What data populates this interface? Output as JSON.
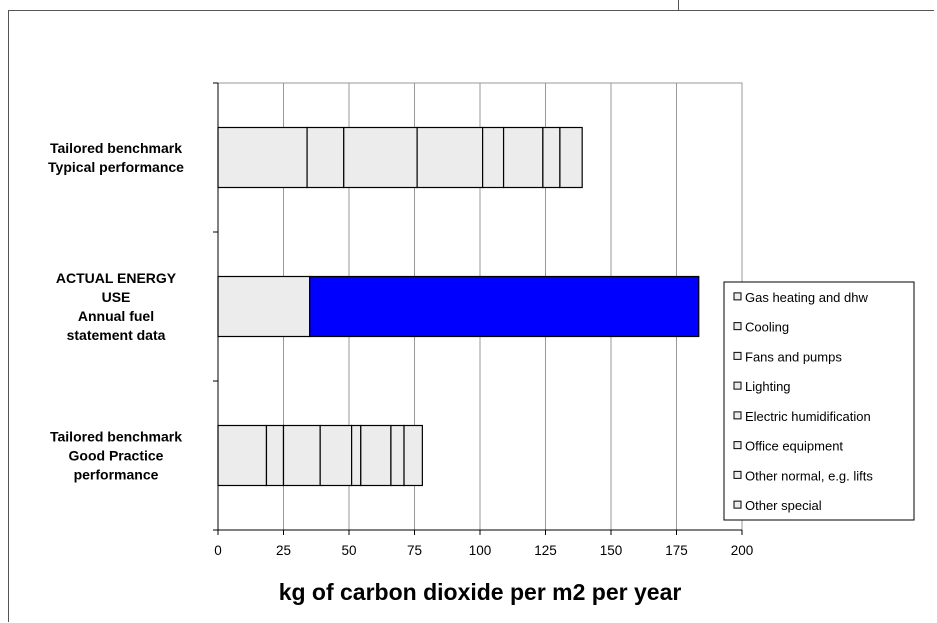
{
  "chart_data": {
    "type": "bar",
    "orientation": "horizontal",
    "stacked": true,
    "xlabel": "kg of carbon dioxide per m2 per year",
    "xlim": [
      0,
      200
    ],
    "xticks": [
      0,
      25,
      50,
      75,
      100,
      125,
      150,
      175,
      200
    ],
    "grid": true,
    "legend_position": "right",
    "categories": [
      {
        "lines": [
          "Tailored benchmark",
          "Typical performance"
        ]
      },
      {
        "lines": [
          "ACTUAL ENERGY",
          "USE",
          "Annual fuel",
          "statement data"
        ]
      },
      {
        "lines": [
          "Tailored benchmark",
          "Good Practice",
          "performance"
        ]
      }
    ],
    "series": [
      {
        "name": "Gas heating and dhw",
        "values": [
          34,
          35,
          18.5
        ]
      },
      {
        "name": "Cooling",
        "values": [
          14,
          0,
          6.5
        ]
      },
      {
        "name": "Fans and pumps",
        "values": [
          28,
          0,
          14
        ]
      },
      {
        "name": "Lighting",
        "values": [
          25,
          0,
          12
        ]
      },
      {
        "name": "Electric humidification",
        "values": [
          8,
          0,
          3.5
        ]
      },
      {
        "name": "Office equipment",
        "values": [
          15,
          0,
          11.5
        ]
      },
      {
        "name": "Other normal, e.g. lifts",
        "values": [
          6.5,
          0,
          5
        ]
      },
      {
        "name": "Other special",
        "values": [
          8.5,
          0,
          7
        ]
      }
    ],
    "extra_segments": [
      {
        "category_index": 1,
        "value": 148.5,
        "color": "#0000ff"
      }
    ],
    "colors": {
      "bar_fill": "#ececec",
      "highlight": "#0000ff",
      "grid": "#999999",
      "bar_edge": "#000000"
    }
  }
}
